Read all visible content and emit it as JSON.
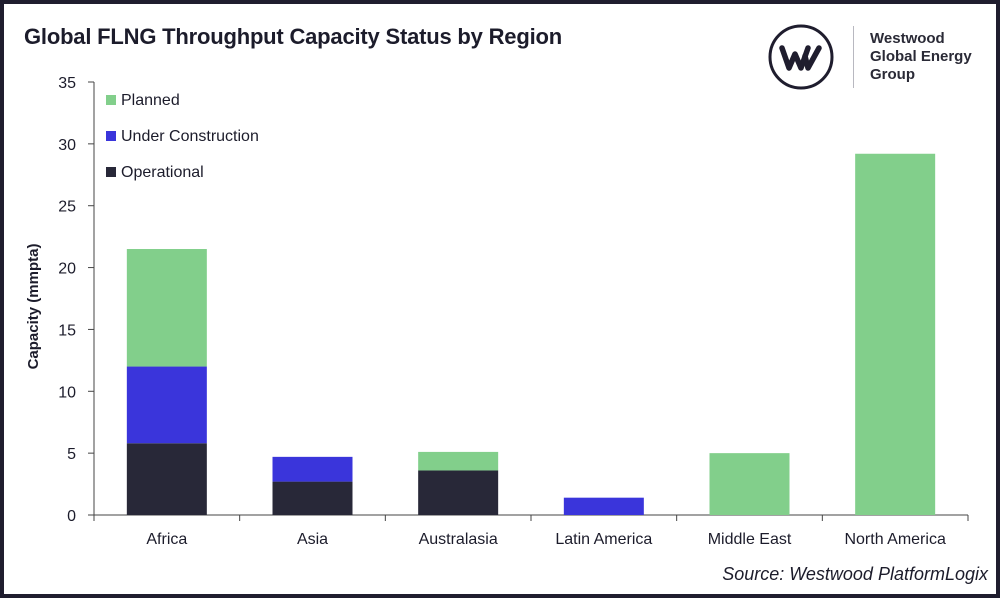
{
  "title": "Global FLNG Throughput Capacity Status by Region",
  "brand": {
    "logo_icon": "westwood-w-logo-icon",
    "name_lines": [
      "Westwood",
      "Global Energy",
      "Group"
    ]
  },
  "source": "Source: Westwood PlatformLogix",
  "colors": {
    "planned": "#82cf8b",
    "under_construction": "#3a35db",
    "operational": "#282838",
    "axis": "#444444",
    "background": "#ffffff",
    "frame": "#1f1d2e"
  },
  "chart_data": {
    "type": "bar",
    "stacked": true,
    "title": "Global FLNG Throughput Capacity Status by Region",
    "xlabel": "",
    "ylabel": "Capacity (mmpta)",
    "ylim": [
      0,
      35
    ],
    "yticks": [
      0,
      5,
      10,
      15,
      20,
      25,
      30,
      35
    ],
    "grid": false,
    "legend_position": "top-left",
    "categories": [
      "Africa",
      "Asia",
      "Australasia",
      "Latin America",
      "Middle East",
      "North America"
    ],
    "series": [
      {
        "name": "Operational",
        "color_key": "operational",
        "values": [
          5.8,
          2.7,
          3.6,
          0,
          0,
          0
        ]
      },
      {
        "name": "Under Construction",
        "color_key": "under_construction",
        "values": [
          6.2,
          2.0,
          0,
          1.4,
          0,
          0
        ]
      },
      {
        "name": "Planned",
        "color_key": "planned",
        "values": [
          9.5,
          0,
          1.5,
          0,
          5.0,
          29.2
        ]
      }
    ],
    "legend_order": [
      "Planned",
      "Under Construction",
      "Operational"
    ]
  }
}
